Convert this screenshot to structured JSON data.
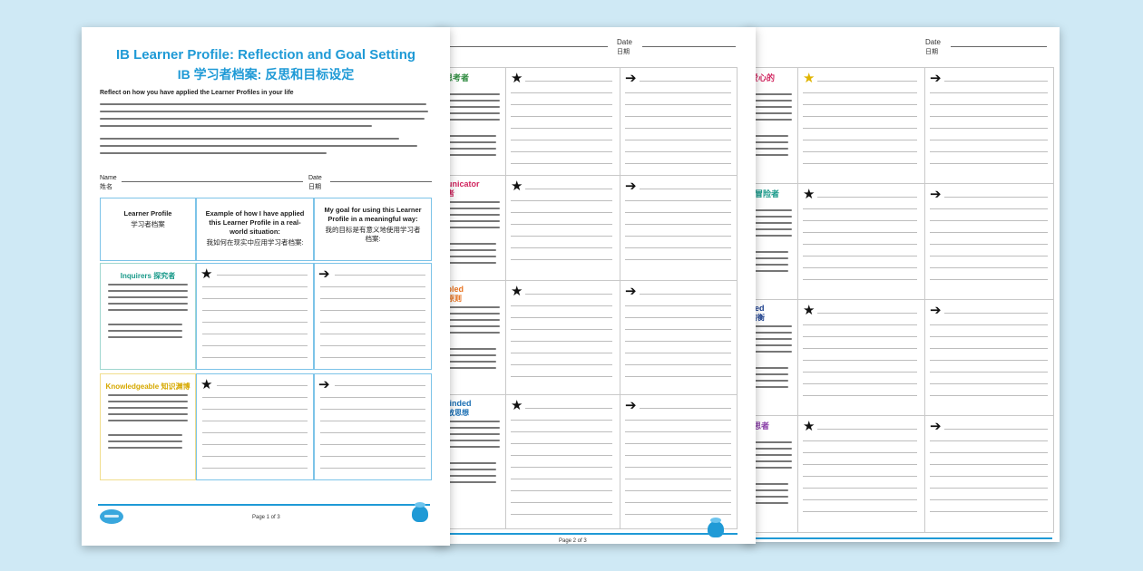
{
  "colors": {
    "accent": "#1f9ad6",
    "background": "#cfe9f5",
    "communicator": "#d1245e",
    "principled": "#e8721f",
    "open_minded": "#1b6fb3",
    "caring": "#d1245e",
    "thinker": "#2d8a3e",
    "balanced": "#1b3f8f",
    "reflective": "#8a3fa8",
    "inquirer": "#1a9a8a",
    "knowledgeable": "#e0b400"
  },
  "icons": {
    "goal": "arrow-right-icon",
    "example": "star-icon",
    "brand": "twinkl-badge-icon"
  },
  "sheet1": {
    "title_en": "IB Learner Profile: Reflection and Goal Setting",
    "title_zh": "IB 学习者档案: 反思和目标设定",
    "intro_heading": "Reflect on how you have applied the Learner Profiles in your life",
    "name_label": "Name",
    "name_label_zh": "姓名",
    "date_label": "Date",
    "date_label_zh": "日期",
    "table": {
      "col1": "Learner Profile",
      "col1_zh": "学习者档案",
      "col2": "Example of how I have applied this Learner Profile in a real-world situation:",
      "col2_zh": "我如何在现实中应用学习者档案:",
      "col3": "My goal for using this Learner Profile in a meaningful way:",
      "col3_zh": "我的目标是有意义地使用学习者档案:"
    },
    "attributes": [
      {
        "name": "Inquirers 探究者",
        "color": "#1a9a8a"
      },
      {
        "name": "Knowledgeable 知识渊博",
        "color": "#e0b400"
      }
    ],
    "footer_page": "Page 1 of 3"
  },
  "sheet2": {
    "date_label": "Date",
    "date_label_zh": "日期",
    "attributes": [
      {
        "name": "er 思考者",
        "color": "#2d8a3e"
      },
      {
        "name": "municator",
        "zh": "流者",
        "color": "#d1245e"
      },
      {
        "name": "cipled",
        "zh": "有原则",
        "color": "#e8721f"
      },
      {
        "name": "-Minded",
        "zh": "开放思想",
        "color": "#1b6fb3"
      }
    ],
    "footer_page": "Page 2 of 3"
  },
  "sheet3": {
    "date_label": "Date",
    "date_label_zh": "日期",
    "attributes": [
      {
        "name": "爱心的",
        "color": "#d1245e"
      },
      {
        "name": "er 冒险者",
        "color": "#1a9a8a"
      },
      {
        "name": "ced",
        "zh": "均衡",
        "color": "#1b3f8f"
      },
      {
        "name": "反思者",
        "color": "#8a3fa8"
      }
    ]
  }
}
